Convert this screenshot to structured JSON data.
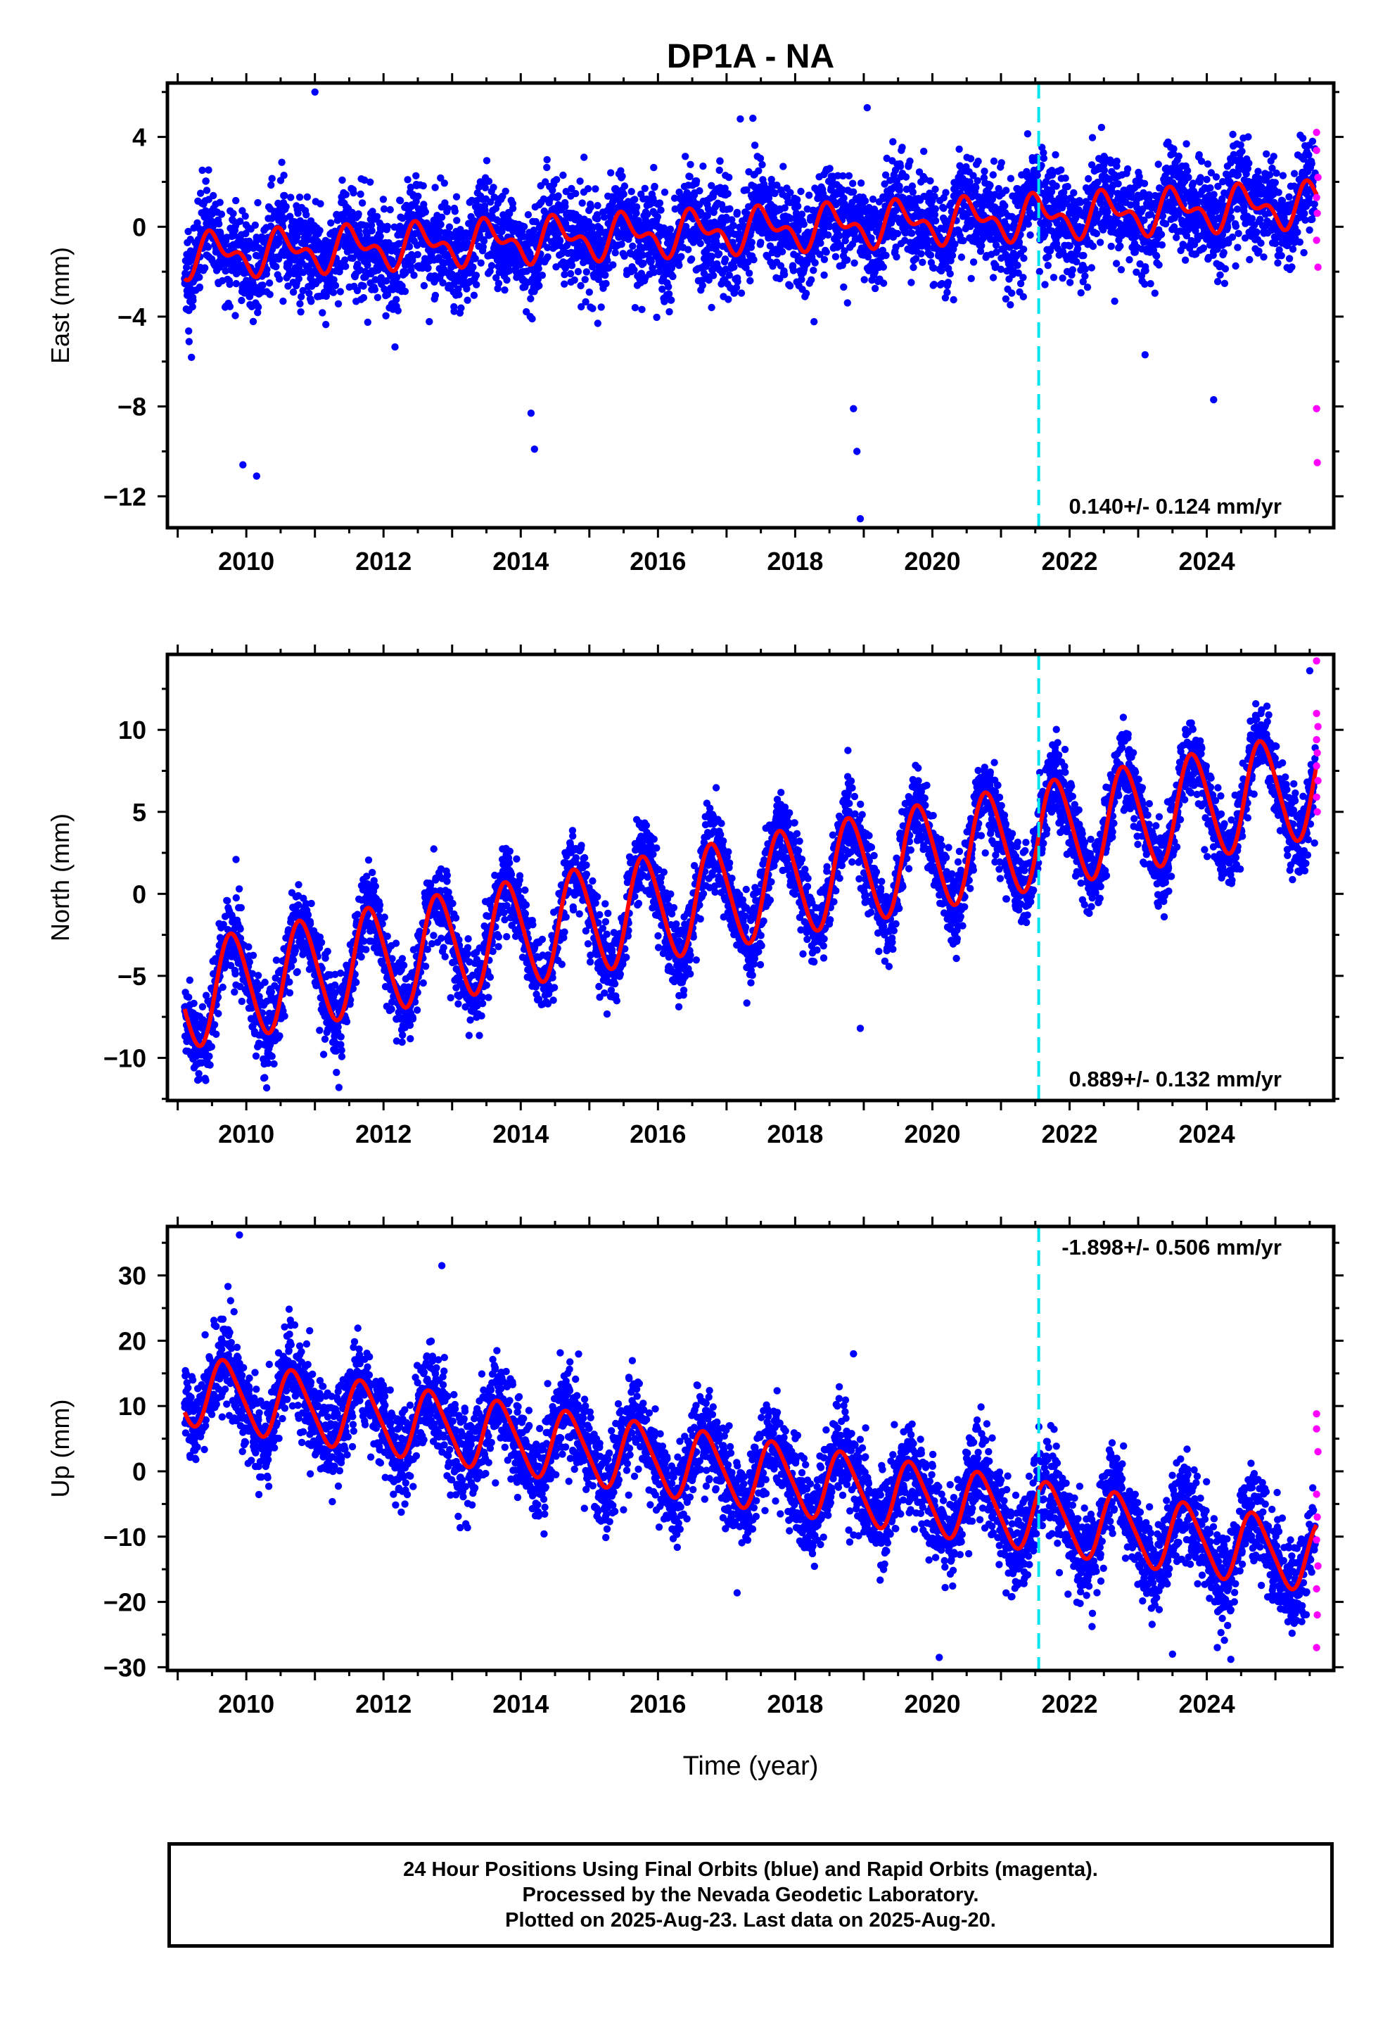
{
  "title": "DP1A - NA",
  "xlabel": "Time (year)",
  "caption": [
    "24 Hour Positions Using Final Orbits (blue) and Rapid Orbits (magenta).",
    "Processed by the Nevada Geodetic Laboratory.",
    "Plotted on 2025-Aug-23. Last data on 2025-Aug-20."
  ],
  "colors": {
    "final_orbits": "#0000ff",
    "rapid_orbits": "#ff00ff",
    "model": "#ff0000",
    "equipment_change": "#00e5ee",
    "frame": "#000000"
  },
  "chart_data": [
    {
      "type": "scatter",
      "ylabel": "East (mm)",
      "rate": "0.140+/- 0.124 mm/yr",
      "xlim": [
        2008.85,
        2025.85
      ],
      "ylim": [
        -13.4,
        6.4
      ],
      "xticks": [
        "2010",
        "2012",
        "2014",
        "2016",
        "2018",
        "2020",
        "2022",
        "2024"
      ],
      "yticks": [
        "4",
        "0",
        "−4",
        "−8",
        "−12"
      ],
      "grid": false,
      "equipment_change_year": 2021.55,
      "trend": {
        "start": [
          2009.1,
          -1.3
        ],
        "end": [
          2025.6,
          1.0
        ]
      },
      "seasonal": {
        "annual_amp": 0.75,
        "semiannual_amp": 0.5,
        "annual_phase": 0.3
      },
      "scatter_sd": 1.1,
      "outliers": [
        [
          2009.95,
          -10.6
        ],
        [
          2010.15,
          -11.1
        ],
        [
          2011.0,
          6.0
        ],
        [
          2014.15,
          -8.3
        ],
        [
          2014.2,
          -9.9
        ],
        [
          2018.85,
          -8.1
        ],
        [
          2018.9,
          -10.0
        ],
        [
          2018.95,
          -13.0
        ],
        [
          2019.05,
          5.3
        ],
        [
          2017.2,
          4.8
        ],
        [
          2023.1,
          -5.7
        ],
        [
          2024.1,
          -7.7
        ]
      ],
      "rapid_orbits": [
        [
          2025.6,
          4.2
        ],
        [
          2025.6,
          3.4
        ],
        [
          2025.62,
          2.2
        ],
        [
          2025.6,
          1.3
        ],
        [
          2025.61,
          0.6
        ],
        [
          2025.6,
          -0.6
        ],
        [
          2025.62,
          -1.8
        ],
        [
          2025.6,
          -8.1
        ],
        [
          2025.61,
          -10.5
        ]
      ]
    },
    {
      "type": "scatter",
      "ylabel": "North (mm)",
      "rate": "0.889+/- 0.132 mm/yr",
      "xlim": [
        2008.85,
        2025.85
      ],
      "ylim": [
        -12.6,
        14.6
      ],
      "xticks": [
        "2010",
        "2012",
        "2014",
        "2016",
        "2018",
        "2020",
        "2022",
        "2024"
      ],
      "yticks": [
        "10",
        "5",
        "0",
        "−5",
        "−10"
      ],
      "grid": false,
      "equipment_change_year": 2021.55,
      "trend": {
        "start": [
          2009.1,
          -6.2
        ],
        "end": [
          2025.6,
          6.7
        ]
      },
      "seasonal": {
        "annual_amp": 3.2,
        "semiannual_amp": 0.3,
        "annual_phase": 0.55
      },
      "scatter_sd": 1.2,
      "outliers": [
        [
          2009.85,
          2.1
        ],
        [
          2018.95,
          -8.2
        ],
        [
          2025.5,
          13.6
        ],
        [
          2011.35,
          -11.8
        ]
      ],
      "rapid_orbits": [
        [
          2025.6,
          14.2
        ],
        [
          2025.6,
          11.0
        ],
        [
          2025.62,
          10.2
        ],
        [
          2025.6,
          9.4
        ],
        [
          2025.61,
          8.6
        ],
        [
          2025.6,
          7.8
        ],
        [
          2025.62,
          6.9
        ],
        [
          2025.6,
          5.9
        ],
        [
          2025.61,
          5.0
        ]
      ]
    },
    {
      "type": "scatter",
      "ylabel": "Up (mm)",
      "rate": "-1.898+/- 0.506 mm/yr",
      "xlim": [
        2008.85,
        2025.85
      ],
      "ylim": [
        -30.5,
        37.5
      ],
      "xticks": [
        "2010",
        "2012",
        "2014",
        "2016",
        "2018",
        "2020",
        "2022",
        "2024"
      ],
      "yticks": [
        "30",
        "20",
        "10",
        "0",
        "−10",
        "−20",
        "−30"
      ],
      "grid": false,
      "equipment_change_year": 2021.55,
      "trend": {
        "start": [
          2009.1,
          12.5
        ],
        "end": [
          2025.6,
          -13.2
        ]
      },
      "seasonal": {
        "annual_amp": 5.2,
        "semiannual_amp": 0.8,
        "annual_phase": 0.45
      },
      "scatter_sd": 3.6,
      "outliers": [
        [
          2009.9,
          36.2
        ],
        [
          2012.85,
          31.5
        ],
        [
          2020.1,
          -28.5
        ],
        [
          2023.5,
          -28.0
        ],
        [
          2024.35,
          -28.8
        ],
        [
          2018.85,
          18.0
        ]
      ],
      "rapid_orbits": [
        [
          2025.6,
          8.8
        ],
        [
          2025.6,
          6.5
        ],
        [
          2025.62,
          3.0
        ],
        [
          2025.6,
          -3.5
        ],
        [
          2025.61,
          -7.0
        ],
        [
          2025.6,
          -10.5
        ],
        [
          2025.62,
          -14.5
        ],
        [
          2025.6,
          -18.0
        ],
        [
          2025.61,
          -22.0
        ],
        [
          2025.6,
          -27.0
        ]
      ]
    }
  ]
}
